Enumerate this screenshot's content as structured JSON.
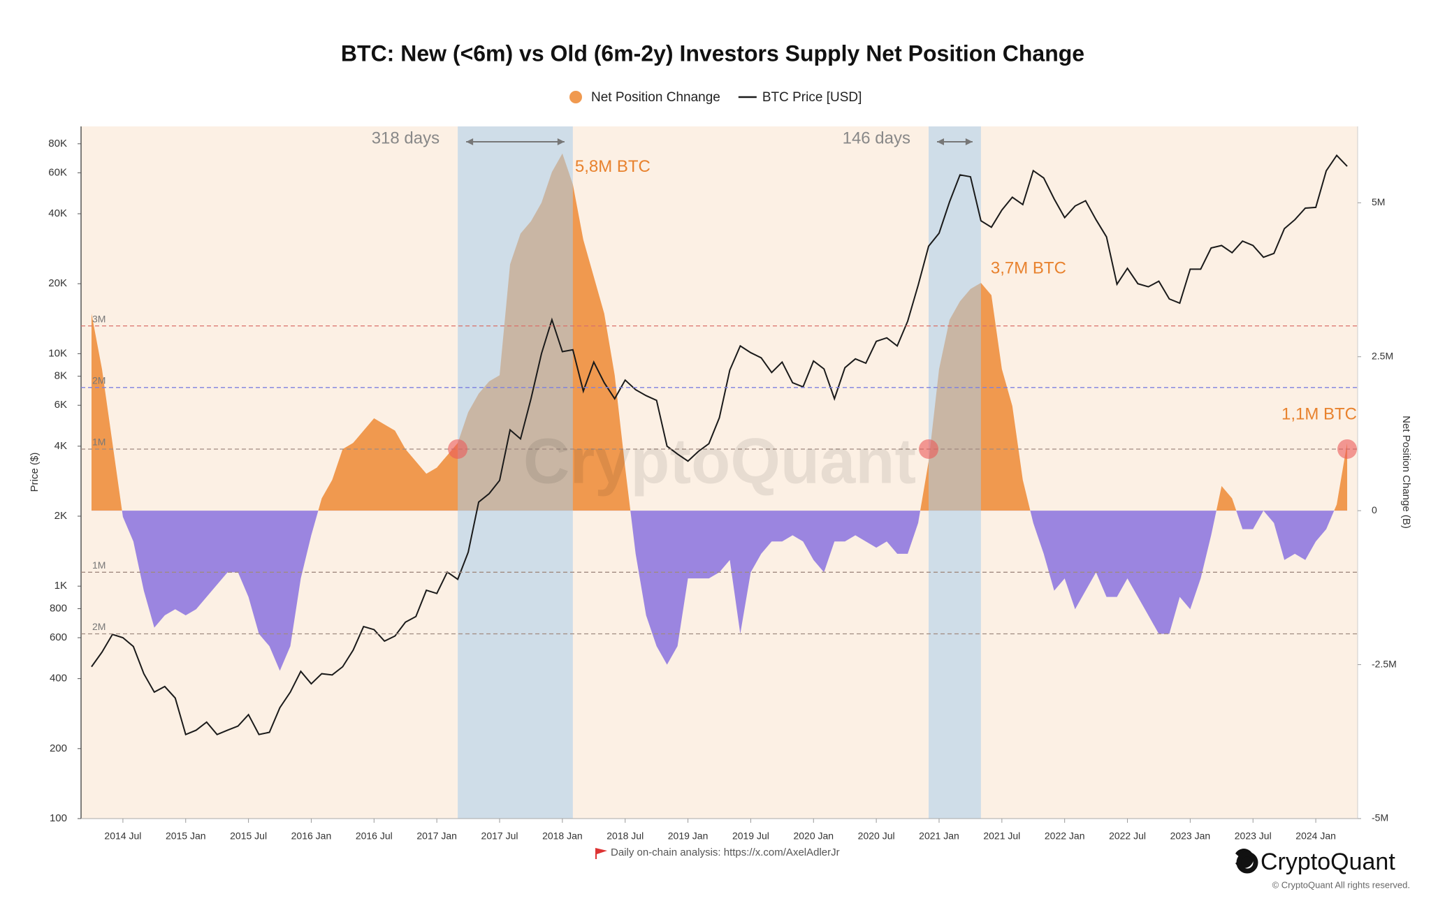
{
  "chart_data": {
    "type": "combo",
    "title": "BTC: New (<6m) vs Old (6m-2y) Investors Supply Net Position Change",
    "y_label": "Price ($)",
    "y2_label": "Net Position Change (B)",
    "footer_note": "Daily on-chain analysis: https://x.com/AxelAdlerJr",
    "brand": "CryptoQuant",
    "copyright": "© CryptoQuant All rights reserved.",
    "yscale": "log",
    "ylim": [
      100,
      95000
    ],
    "yticks": [
      {
        "value": 100,
        "label": "100"
      },
      {
        "value": 200,
        "label": "200"
      },
      {
        "value": 400,
        "label": "400"
      },
      {
        "value": 600,
        "label": "600"
      },
      {
        "value": 800,
        "label": "800"
      },
      {
        "value": 1000,
        "label": "1K"
      },
      {
        "value": 2000,
        "label": "2K"
      },
      {
        "value": 4000,
        "label": "4K"
      },
      {
        "value": 6000,
        "label": "6K"
      },
      {
        "value": 8000,
        "label": "8K"
      },
      {
        "value": 10000,
        "label": "10K"
      },
      {
        "value": 20000,
        "label": "20K"
      },
      {
        "value": 40000,
        "label": "40K"
      },
      {
        "value": 60000,
        "label": "60K"
      },
      {
        "value": 80000,
        "label": "80K"
      }
    ],
    "y2lim": [
      -5000000,
      6240000
    ],
    "y2ticks": [
      {
        "value": 5000000,
        "label": "5M"
      },
      {
        "value": 2500000,
        "label": "2.5M"
      },
      0,
      {
        "value": -2500000,
        "label": "-2.5M"
      },
      {
        "value": -5000000,
        "label": "-5M"
      }
    ],
    "xlim": [
      "2014-03",
      "2024-05"
    ],
    "xticks": [
      {
        "value": "2014-07",
        "label": "2014 Jul"
      },
      {
        "value": "2015-01",
        "label": "2015 Jan"
      },
      {
        "value": "2015-07",
        "label": "2015 Jul"
      },
      {
        "value": "2016-01",
        "label": "2016 Jan"
      },
      {
        "value": "2016-07",
        "label": "2016 Jul"
      },
      {
        "value": "2017-01",
        "label": "2017 Jan"
      },
      {
        "value": "2017-07",
        "label": "2017 Jul"
      },
      {
        "value": "2018-01",
        "label": "2018 Jan"
      },
      {
        "value": "2018-07",
        "label": "2018 Jul"
      },
      {
        "value": "2019-01",
        "label": "2019 Jan"
      },
      {
        "value": "2019-07",
        "label": "2019 Jul"
      },
      {
        "value": "2020-01",
        "label": "2020 Jan"
      },
      {
        "value": "2020-07",
        "label": "2020 Jul"
      },
      {
        "value": "2021-01",
        "label": "2021 Jan"
      },
      {
        "value": "2021-07",
        "label": "2021 Jul"
      },
      {
        "value": "2022-01",
        "label": "2022 Jan"
      },
      {
        "value": "2022-07",
        "label": "2022 Jul"
      },
      {
        "value": "2023-01",
        "label": "2023 Jan"
      },
      {
        "value": "2023-07",
        "label": "2023 Jul"
      },
      {
        "value": "2024-01",
        "label": "2024 Jan"
      }
    ],
    "x": [
      "2014-04",
      "2014-05",
      "2014-06",
      "2014-07",
      "2014-08",
      "2014-09",
      "2014-10",
      "2014-11",
      "2014-12",
      "2015-01",
      "2015-02",
      "2015-03",
      "2015-04",
      "2015-05",
      "2015-06",
      "2015-07",
      "2015-08",
      "2015-09",
      "2015-10",
      "2015-11",
      "2015-12",
      "2016-01",
      "2016-02",
      "2016-03",
      "2016-04",
      "2016-05",
      "2016-06",
      "2016-07",
      "2016-08",
      "2016-09",
      "2016-10",
      "2016-11",
      "2016-12",
      "2017-01",
      "2017-02",
      "2017-03",
      "2017-04",
      "2017-05",
      "2017-06",
      "2017-07",
      "2017-08",
      "2017-09",
      "2017-10",
      "2017-11",
      "2017-12",
      "2018-01",
      "2018-02",
      "2018-03",
      "2018-04",
      "2018-05",
      "2018-06",
      "2018-07",
      "2018-08",
      "2018-09",
      "2018-10",
      "2018-11",
      "2018-12",
      "2019-01",
      "2019-02",
      "2019-03",
      "2019-04",
      "2019-05",
      "2019-06",
      "2019-07",
      "2019-08",
      "2019-09",
      "2019-10",
      "2019-11",
      "2019-12",
      "2020-01",
      "2020-02",
      "2020-03",
      "2020-04",
      "2020-05",
      "2020-06",
      "2020-07",
      "2020-08",
      "2020-09",
      "2020-10",
      "2020-11",
      "2020-12",
      "2021-01",
      "2021-02",
      "2021-03",
      "2021-04",
      "2021-05",
      "2021-06",
      "2021-07",
      "2021-08",
      "2021-09",
      "2021-10",
      "2021-11",
      "2021-12",
      "2022-01",
      "2022-02",
      "2022-03",
      "2022-04",
      "2022-05",
      "2022-06",
      "2022-07",
      "2022-08",
      "2022-09",
      "2022-10",
      "2022-11",
      "2022-12",
      "2023-01",
      "2023-02",
      "2023-03",
      "2023-04",
      "2023-05",
      "2023-06",
      "2023-07",
      "2023-08",
      "2023-09",
      "2023-10",
      "2023-11",
      "2023-12",
      "2024-01",
      "2024-02",
      "2024-03",
      "2024-04"
    ],
    "series": [
      {
        "name": "Net Position Chnange",
        "color": "#f0994f",
        "negative_color": "#9b85e0",
        "axis": "y2",
        "values": [
          3200000,
          2300000,
          1100000,
          -100000,
          -500000,
          -1300000,
          -1900000,
          -1700000,
          -1600000,
          -1700000,
          -1600000,
          -1400000,
          -1200000,
          -1000000,
          -1000000,
          -1400000,
          -2000000,
          -2200000,
          -2600000,
          -2200000,
          -1100000,
          -400000,
          200000,
          500000,
          1000000,
          1100000,
          1300000,
          1500000,
          1400000,
          1300000,
          1000000,
          800000,
          600000,
          700000,
          900000,
          1100000,
          1600000,
          1900000,
          2100000,
          2200000,
          4000000,
          4500000,
          4700000,
          5000000,
          5500000,
          5800000,
          5300000,
          4400000,
          3800000,
          3200000,
          2200000,
          700000,
          -700000,
          -1700000,
          -2200000,
          -2500000,
          -2200000,
          -1100000,
          -1100000,
          -1100000,
          -1000000,
          -800000,
          -2000000,
          -1000000,
          -700000,
          -500000,
          -500000,
          -400000,
          -500000,
          -800000,
          -1000000,
          -500000,
          -500000,
          -400000,
          -500000,
          -600000,
          -500000,
          -700000,
          -700000,
          -200000,
          800000,
          2300000,
          3100000,
          3400000,
          3600000,
          3700000,
          3500000,
          2300000,
          1700000,
          500000,
          -200000,
          -700000,
          -1300000,
          -1100000,
          -1600000,
          -1300000,
          -1000000,
          -1400000,
          -1400000,
          -1100000,
          -1400000,
          -1700000,
          -2000000,
          -2000000,
          -1400000,
          -1600000,
          -1100000,
          -400000,
          400000,
          200000,
          -300000,
          -300000,
          0,
          -200000,
          -800000,
          -700000,
          -800000,
          -500000,
          -300000,
          100000,
          1100000
        ]
      },
      {
        "name": "BTC Price [USD]",
        "color": "#1a1a1a",
        "values": [
          450,
          520,
          620,
          600,
          550,
          420,
          350,
          370,
          330,
          230,
          240,
          260,
          230,
          240,
          250,
          280,
          230,
          235,
          300,
          350,
          430,
          380,
          420,
          415,
          450,
          530,
          670,
          650,
          580,
          610,
          700,
          740,
          960,
          930,
          1150,
          1070,
          1400,
          2300,
          2500,
          2850,
          4700,
          4300,
          6400,
          10000,
          14000,
          10200,
          10400,
          6900,
          9200,
          7500,
          6400,
          7700,
          7000,
          6600,
          6300,
          4000,
          3700,
          3450,
          3800,
          4100,
          5300,
          8500,
          10800,
          10100,
          9600,
          8300,
          9200,
          7500,
          7200,
          9300,
          8600,
          6400,
          8700,
          9500,
          9100,
          11300,
          11700,
          10800,
          13800,
          19700,
          29000,
          33000,
          45000,
          58800,
          57700,
          37300,
          35000,
          41500,
          47100,
          43800,
          61300,
          57000,
          46300,
          38500,
          43200,
          45500,
          37700,
          31800,
          19900,
          23300,
          20000,
          19400,
          20500,
          17200,
          16500,
          23100,
          23100,
          28500,
          29200,
          27200,
          30500,
          29200,
          26000,
          27000,
          34500,
          37700,
          42300,
          42600,
          61200,
          71300,
          64000
        ]
      }
    ],
    "reference_lines": [
      {
        "value": 3000000,
        "label": "3M",
        "color": "#d9706a"
      },
      {
        "value": 2000000,
        "label": "2M",
        "color": "#7b7fe0"
      },
      {
        "value": 1000000,
        "label": "1M",
        "color": "#a08a80"
      },
      {
        "value": -1000000,
        "label": "1M",
        "color": "#a08a80"
      },
      {
        "value": -2000000,
        "label": "2M",
        "color": "#a08a80"
      }
    ],
    "bands": [
      {
        "start": "2017-03",
        "end": "2018-02",
        "label": "318 days"
      },
      {
        "start": "2020-12",
        "end": "2021-05",
        "label": "146 days"
      }
    ],
    "markers": [
      {
        "x": "2017-03",
        "value": 1000000
      },
      {
        "x": "2020-12",
        "value": 1000000
      },
      {
        "x": "2024-04",
        "value": 1000000
      }
    ],
    "annotations": [
      {
        "text": "5,8M BTC",
        "x": "2018-01",
        "value": 5800000
      },
      {
        "text": "3,7M BTC",
        "x": "2021-05",
        "value": 3700000
      },
      {
        "text": "1,1M BTC",
        "x": "2024-04",
        "value": 1100000
      }
    ]
  }
}
